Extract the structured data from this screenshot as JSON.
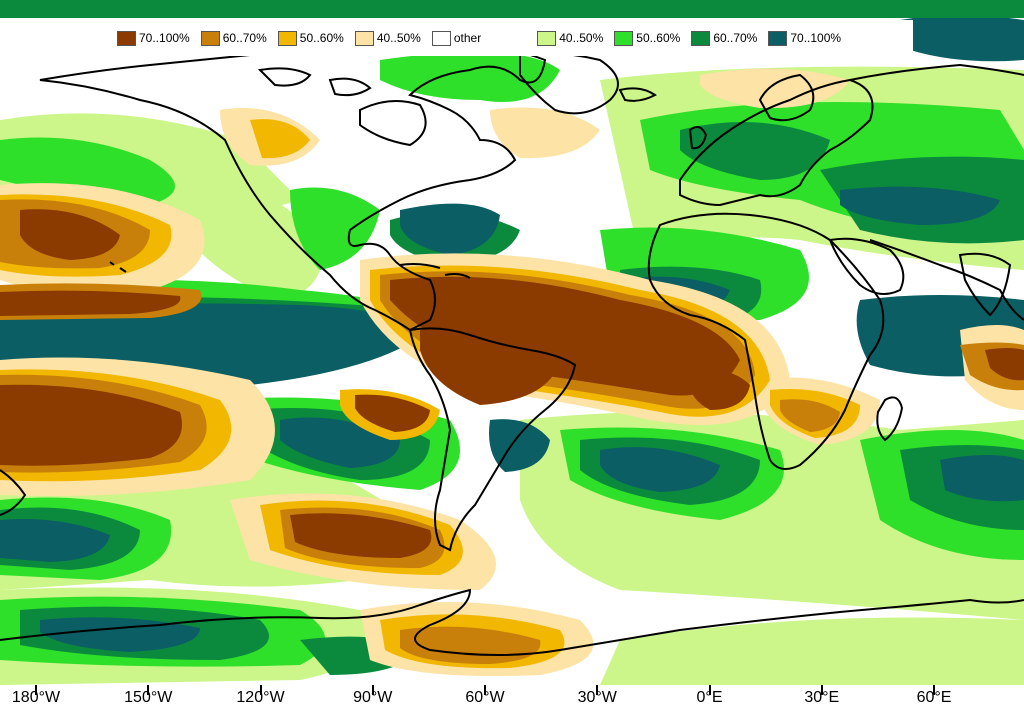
{
  "legend": {
    "items": [
      {
        "label": "70..100%",
        "color": "#8B3A00"
      },
      {
        "label": "60..70%",
        "color": "#C8800A"
      },
      {
        "label": "50..60%",
        "color": "#F2B700"
      },
      {
        "label": "40..50%",
        "color": "#FDE3A6"
      },
      {
        "label": "other",
        "color": "#FFFFFF"
      },
      {
        "label": "40..50%",
        "color": "#CCF58A"
      },
      {
        "label": "50..60%",
        "color": "#2FE02A"
      },
      {
        "label": "60..70%",
        "color": "#0B8A3D"
      },
      {
        "label": "70..100%",
        "color": "#0B5E63"
      }
    ]
  },
  "axis": {
    "ticks": [
      {
        "label": "180°W",
        "lon": -180
      },
      {
        "label": "150°W",
        "lon": -150
      },
      {
        "label": "120°W",
        "lon": -120
      },
      {
        "label": "90°W",
        "lon": -90
      },
      {
        "label": "60°W",
        "lon": -60
      },
      {
        "label": "30°W",
        "lon": -30
      },
      {
        "label": "0°E",
        "lon": 0
      },
      {
        "label": "30°E",
        "lon": 30
      },
      {
        "label": "60°E",
        "lon": 60
      }
    ]
  }
}
